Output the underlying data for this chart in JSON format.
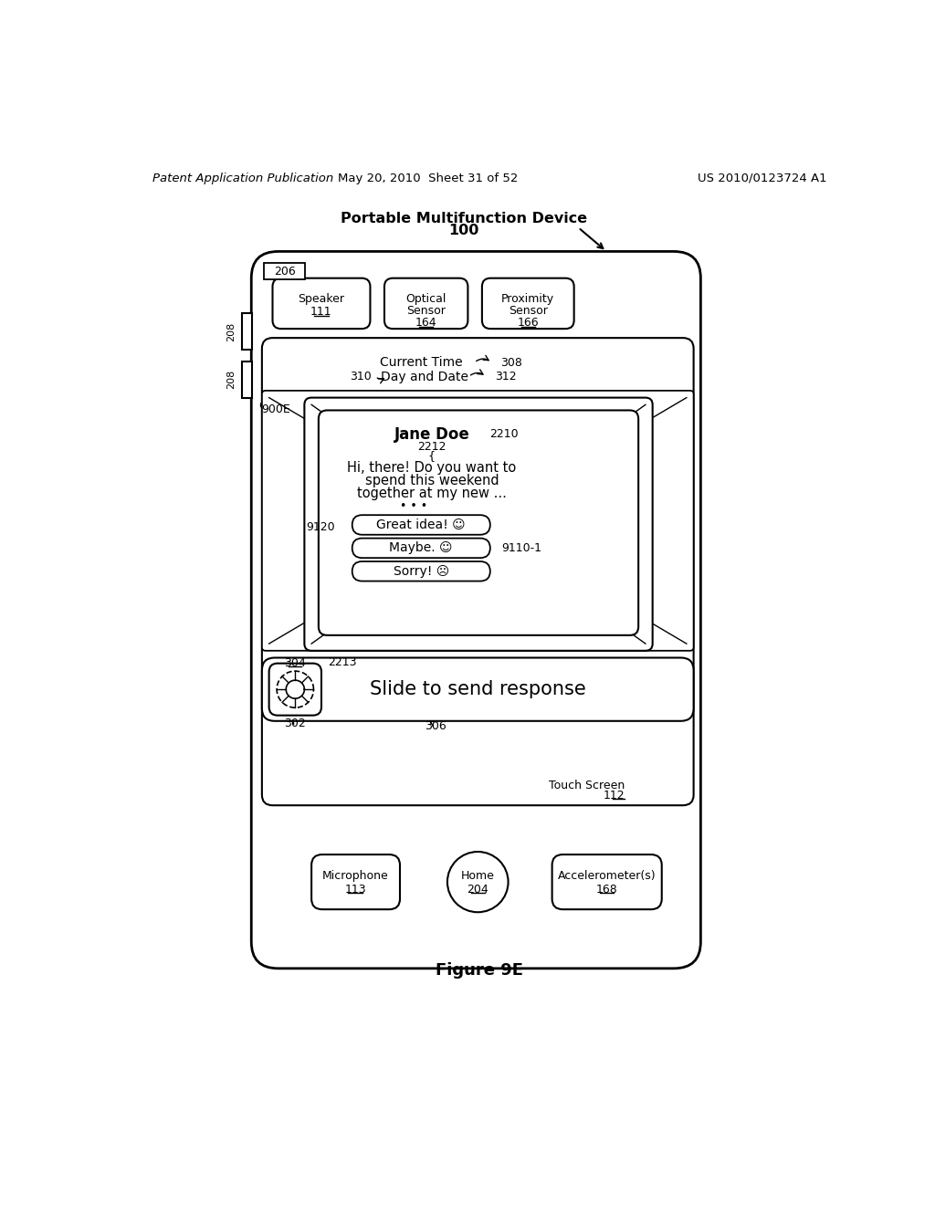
{
  "header_left": "Patent Application Publication",
  "header_mid": "May 20, 2010  Sheet 31 of 52",
  "header_right": "US 2010/0123724 A1",
  "figure_label": "Figure 9E",
  "device_label": "Portable Multifunction Device",
  "device_num": "100",
  "bg_color": "#ffffff",
  "fg_color": "#000000"
}
